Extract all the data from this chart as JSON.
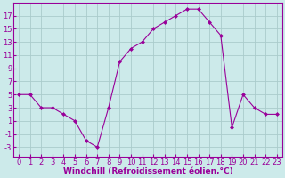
{
  "x": [
    0,
    1,
    2,
    3,
    4,
    5,
    6,
    7,
    8,
    9,
    10,
    11,
    12,
    13,
    14,
    15,
    16,
    17,
    18,
    19,
    20,
    21,
    22,
    23
  ],
  "y": [
    5,
    5,
    3,
    3,
    2,
    1,
    -2,
    -3,
    3,
    10,
    12,
    13,
    15,
    16,
    17,
    18,
    18,
    16,
    14,
    0,
    5,
    3,
    2,
    2
  ],
  "line_color": "#990099",
  "marker": "D",
  "marker_size": 2.0,
  "bg_color": "#cceaea",
  "grid_color": "#aacccc",
  "xlabel": "Windchill (Refroidissement éolien,°C)",
  "xlabel_fontsize": 6.5,
  "yticks": [
    -3,
    -1,
    1,
    3,
    5,
    7,
    9,
    11,
    13,
    15,
    17
  ],
  "xticks": [
    0,
    1,
    2,
    3,
    4,
    5,
    6,
    7,
    8,
    9,
    10,
    11,
    12,
    13,
    14,
    15,
    16,
    17,
    18,
    19,
    20,
    21,
    22,
    23
  ],
  "ylim": [
    -4.5,
    19
  ],
  "xlim": [
    -0.5,
    23.5
  ],
  "tick_label_fontsize": 6,
  "tick_color": "#990099",
  "spine_color": "#990099"
}
